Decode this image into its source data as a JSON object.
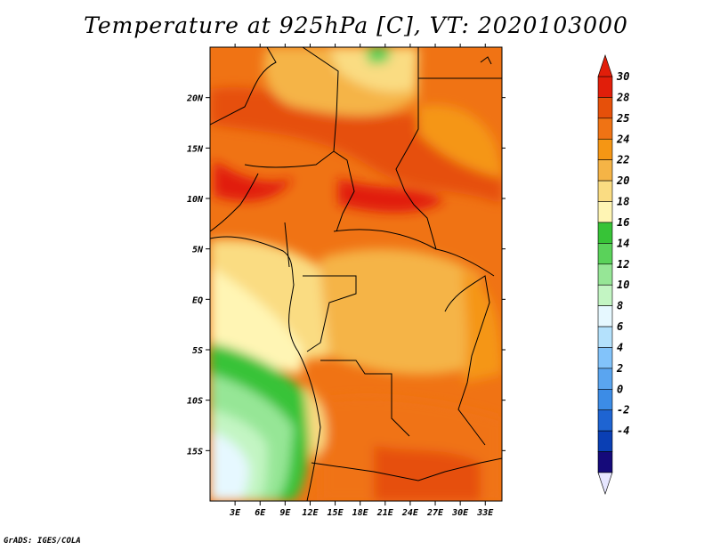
{
  "title": "Temperature at 925hPa [C], VT: 2020103000",
  "credit": "GrADS: IGES/COLA",
  "map": {
    "lon_range": [
      0,
      35
    ],
    "lat_range": [
      -20,
      25
    ],
    "lon_ticks": [
      {
        "value": 3,
        "label": "3E"
      },
      {
        "value": 6,
        "label": "6E"
      },
      {
        "value": 9,
        "label": "9E"
      },
      {
        "value": 12,
        "label": "12E"
      },
      {
        "value": 15,
        "label": "15E"
      },
      {
        "value": 18,
        "label": "18E"
      },
      {
        "value": 21,
        "label": "21E"
      },
      {
        "value": 24,
        "label": "24E"
      },
      {
        "value": 27,
        "label": "27E"
      },
      {
        "value": 30,
        "label": "30E"
      },
      {
        "value": 33,
        "label": "33E"
      }
    ],
    "lat_ticks": [
      {
        "value": 20,
        "label": "20N"
      },
      {
        "value": 15,
        "label": "15N"
      },
      {
        "value": 10,
        "label": "10N"
      },
      {
        "value": 5,
        "label": "5N"
      },
      {
        "value": 0,
        "label": "EQ"
      },
      {
        "value": -5,
        "label": "5S"
      },
      {
        "value": -10,
        "label": "10S"
      },
      {
        "value": -15,
        "label": "15S"
      }
    ]
  },
  "colorbar": {
    "levels": [
      "-4",
      "-2",
      "0",
      "2",
      "4",
      "6",
      "8",
      "10",
      "12",
      "14",
      "16",
      "18",
      "20",
      "22",
      "24",
      "25",
      "28",
      "30"
    ],
    "colors": [
      "#150a7a",
      "#0a3fb4",
      "#1e64d2",
      "#3c8ce6",
      "#5aa5f0",
      "#82c3fa",
      "#b4e1fc",
      "#e6f8ff",
      "#c3f5c3",
      "#96e696",
      "#5ad25a",
      "#37c337",
      "#fff5b4",
      "#fadc82",
      "#f5b446",
      "#f59614",
      "#f07314",
      "#e6500a",
      "#e11e0a"
    ],
    "under_color": "#e6e6ff"
  },
  "colors": {
    "water": "#e8fafe",
    "border": "#000000"
  }
}
